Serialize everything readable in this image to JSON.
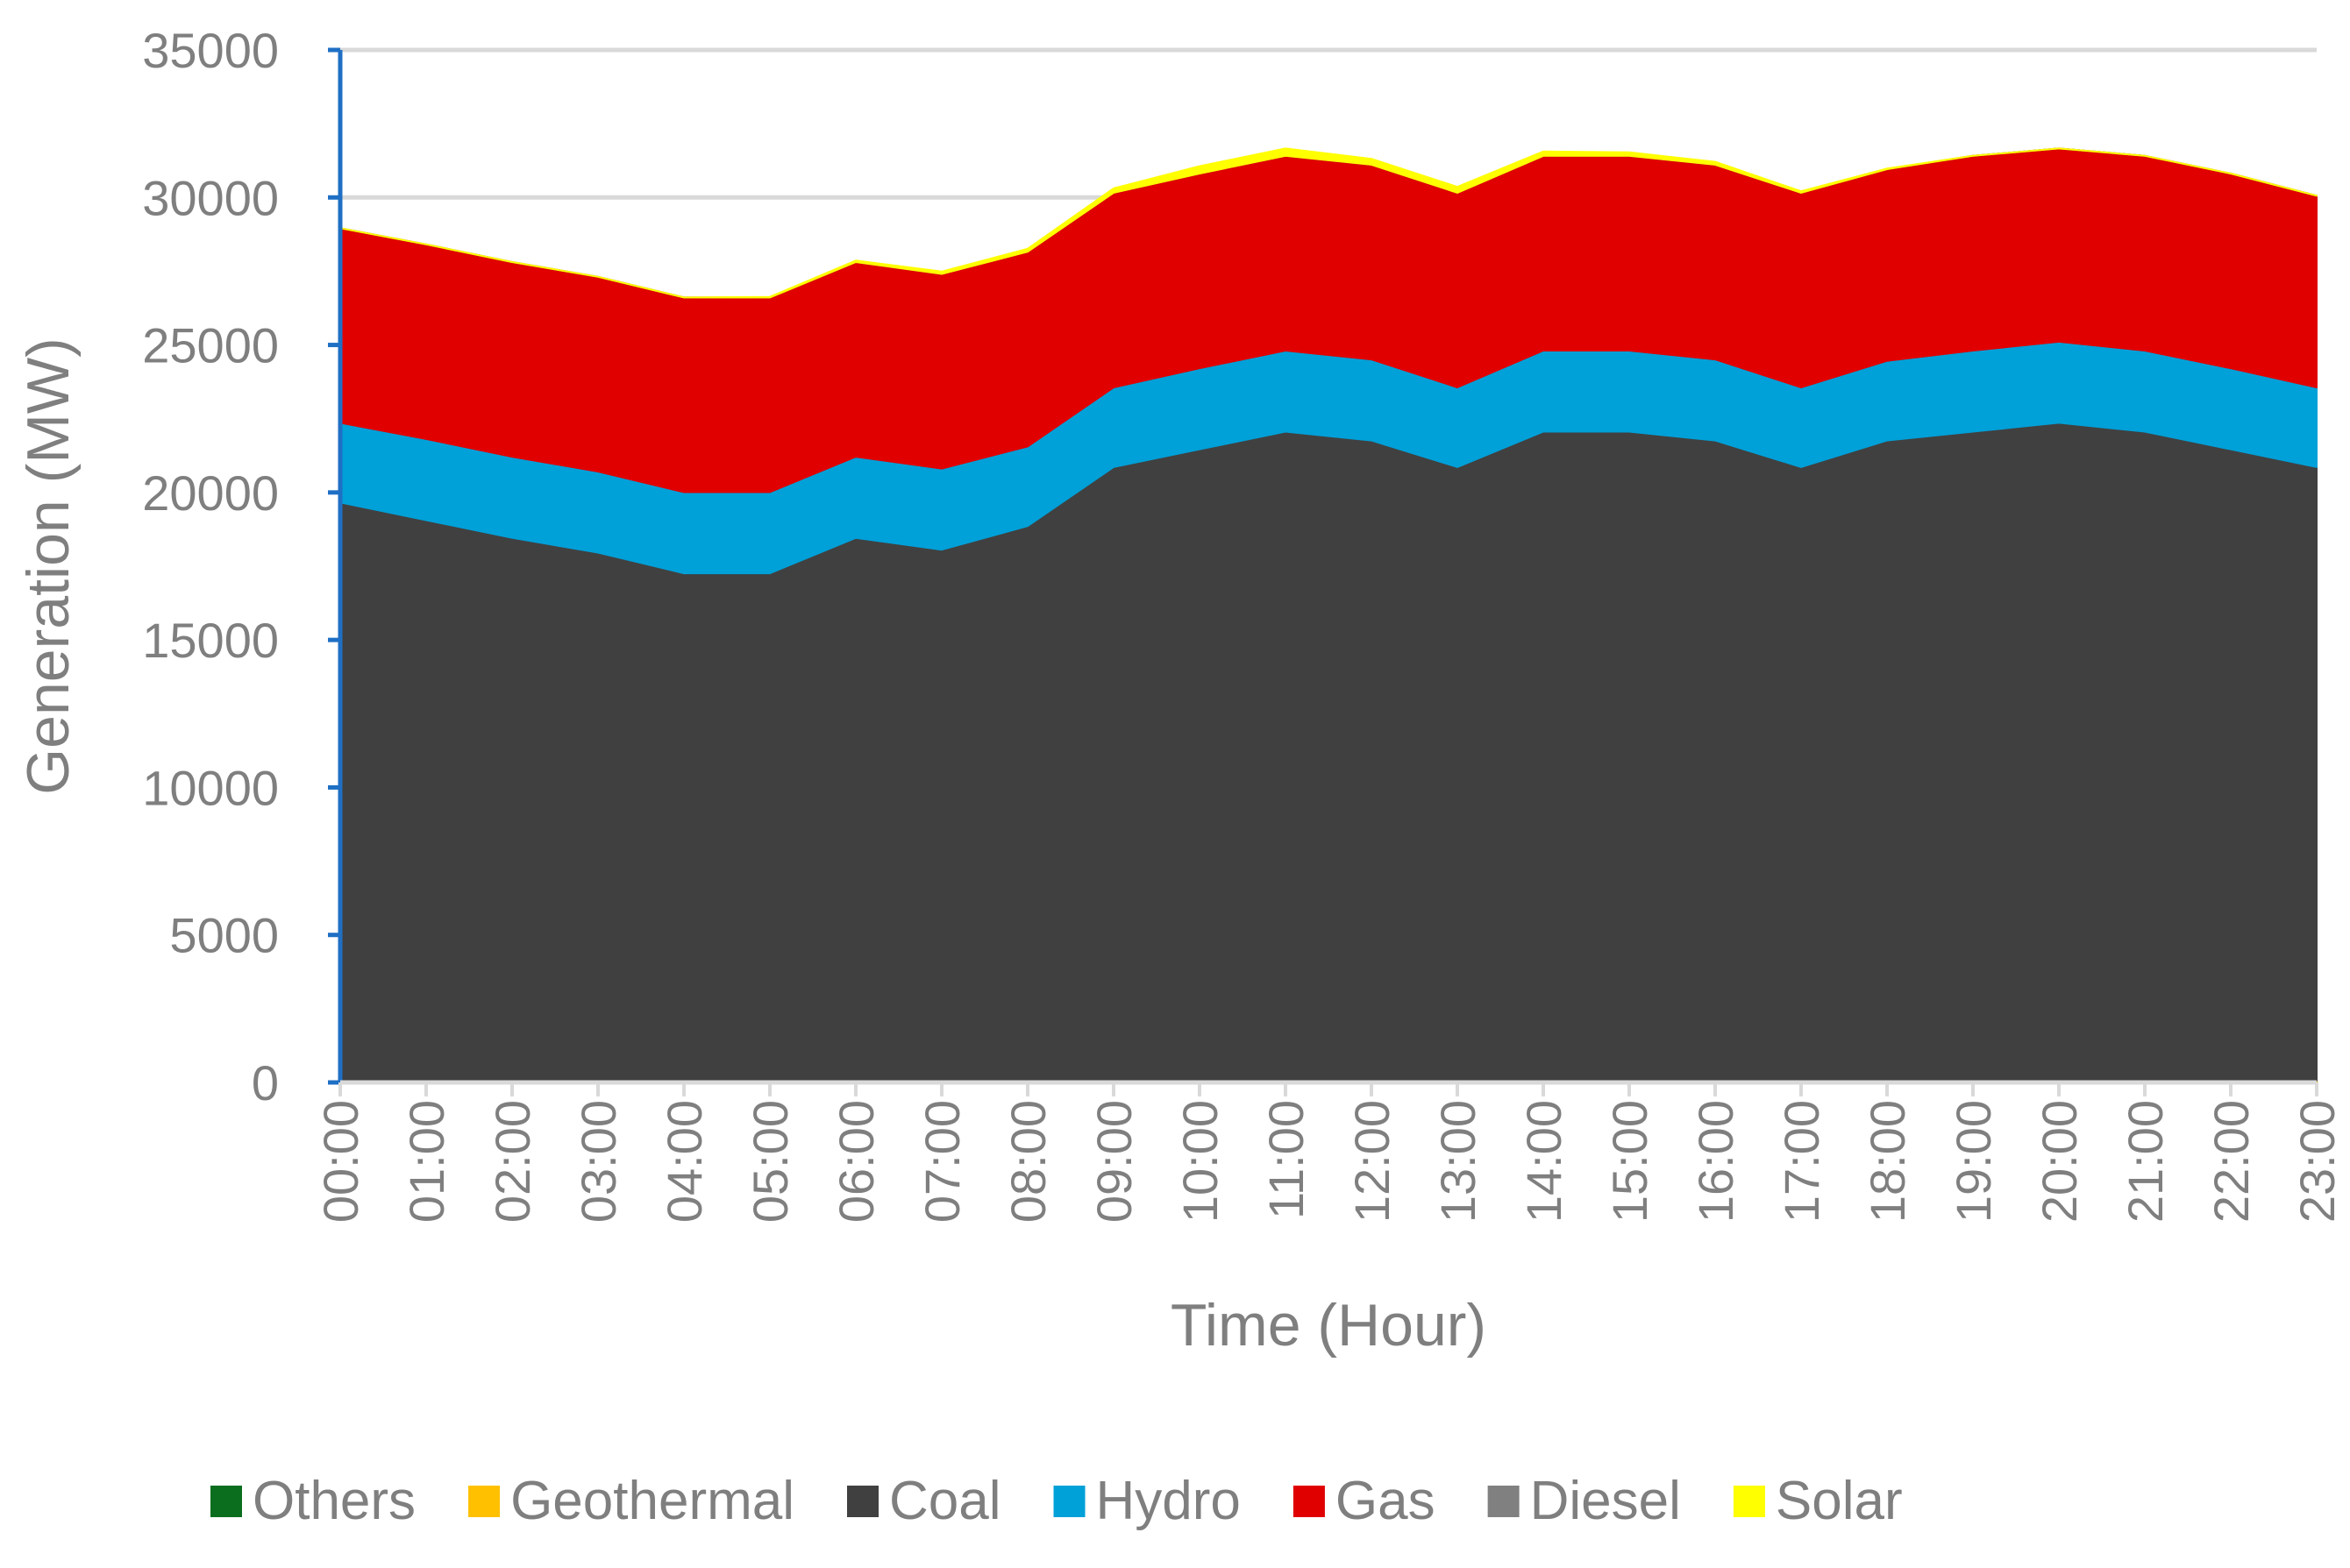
{
  "chart_data": {
    "type": "area",
    "stacked": true,
    "title": "",
    "xlabel": "Time (Hour)",
    "ylabel": "Generation (MW)",
    "ylim": [
      0,
      35000
    ],
    "yticks": [
      0,
      5000,
      10000,
      15000,
      20000,
      25000,
      30000,
      35000
    ],
    "grid": true,
    "legend_position": "bottom",
    "categories": [
      "00:00",
      "01:00",
      "02:00",
      "03:00",
      "04:00",
      "05:00",
      "06:00",
      "07:00",
      "08:00",
      "09:00",
      "10:00",
      "11:00",
      "12:00",
      "13:00",
      "14:00",
      "15:00",
      "16:00",
      "17:00",
      "18:00",
      "19:00",
      "20:00",
      "21:00",
      "22:00",
      "23:00"
    ],
    "series": [
      {
        "name": "Others",
        "color": "#0b6e1f",
        "values": [
          20,
          20,
          20,
          20,
          20,
          20,
          20,
          20,
          20,
          20,
          20,
          20,
          20,
          20,
          20,
          20,
          20,
          20,
          20,
          20,
          20,
          20,
          20,
          20
        ]
      },
      {
        "name": "Geothermal",
        "color": "#ffc000",
        "values": [
          40,
          40,
          40,
          40,
          40,
          40,
          40,
          40,
          40,
          40,
          40,
          40,
          40,
          40,
          40,
          40,
          40,
          40,
          40,
          40,
          40,
          40,
          40,
          40
        ]
      },
      {
        "name": "Coal",
        "color": "#404040",
        "values": [
          19600,
          19000,
          18400,
          17900,
          17200,
          17200,
          18400,
          18000,
          18800,
          20800,
          21400,
          22000,
          21700,
          20800,
          22000,
          22000,
          21700,
          20800,
          21700,
          22000,
          22300,
          22000,
          21400,
          20800
        ]
      },
      {
        "name": "Hydro",
        "color": "#00a0d8",
        "values": [
          2700,
          2750,
          2750,
          2750,
          2750,
          2750,
          2750,
          2750,
          2700,
          2700,
          2750,
          2750,
          2750,
          2700,
          2750,
          2750,
          2750,
          2700,
          2700,
          2750,
          2750,
          2750,
          2750,
          2700
        ]
      },
      {
        "name": "Gas",
        "color": "#e00000",
        "values": [
          6600,
          6600,
          6600,
          6600,
          6600,
          6600,
          6600,
          6600,
          6600,
          6600,
          6600,
          6600,
          6600,
          6600,
          6600,
          6600,
          6600,
          6600,
          6500,
          6600,
          6550,
          6600,
          6600,
          6500
        ]
      },
      {
        "name": "Diesel",
        "color": "#808080",
        "values": [
          0,
          0,
          0,
          0,
          0,
          0,
          0,
          0,
          0,
          0,
          0,
          0,
          0,
          0,
          0,
          0,
          0,
          0,
          0,
          0,
          0,
          0,
          0,
          0
        ]
      },
      {
        "name": "Solar",
        "color": "#ffff00",
        "values": [
          0,
          0,
          0,
          0,
          0,
          20,
          50,
          80,
          100,
          150,
          250,
          250,
          200,
          200,
          150,
          120,
          100,
          50,
          20,
          0,
          0,
          0,
          0,
          0
        ]
      }
    ]
  }
}
